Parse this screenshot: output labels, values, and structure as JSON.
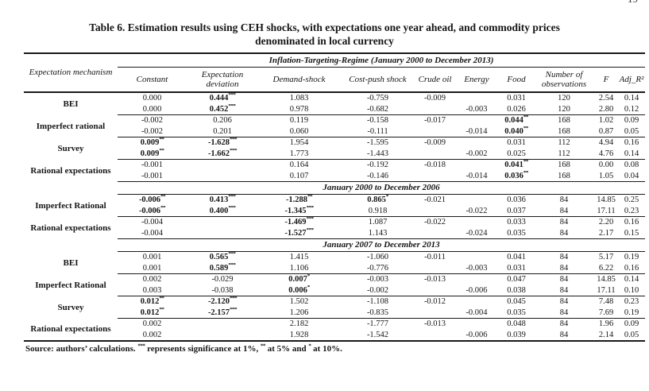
{
  "page": {
    "number": "19"
  },
  "title": {
    "line1": "Table 6. Estimation results using CEH shocks, with expectations one year ahead, and commodity prices",
    "line2": "denominated in local currency"
  },
  "table": {
    "row_header": "Expectation mechanism",
    "span_header": "Inflation-Targeting-Regime (January 2000 to December 2013)",
    "columns": [
      "Constant",
      "Expectation deviation",
      "Demand-shock",
      "Cost-push shock",
      "Crude oil",
      "Energy",
      "Food",
      "Number of observations",
      "F",
      "Adj_R²"
    ],
    "body": [
      {
        "type": "group",
        "label": "BEI",
        "rows": [
          [
            "0.000",
            "0.444^***",
            "1.083",
            "-0.759",
            "-0.009",
            "",
            "0.031",
            "120",
            "2.54",
            "0.14"
          ],
          [
            "0.000",
            "0.452^***",
            "0.978",
            "-0.682",
            "",
            "-0.003",
            "0.026",
            "120",
            "2.80",
            "0.12"
          ]
        ]
      },
      {
        "type": "group",
        "label": "Imperfect rational",
        "rows": [
          [
            "-0.002",
            "0.206",
            "0.119",
            "-0.158",
            "-0.017",
            "",
            "0.044^**",
            "168",
            "1.02",
            "0.09"
          ],
          [
            "-0.002",
            "0.201",
            "0.060",
            "-0.111",
            "",
            "-0.014",
            "0.040^**",
            "168",
            "0.87",
            "0.05"
          ]
        ]
      },
      {
        "type": "group",
        "label": "Survey",
        "rows": [
          [
            "0.009^**",
            "-1.628^***",
            "1.954",
            "-1.595",
            "-0.009",
            "",
            "0.031",
            "112",
            "4.94",
            "0.16"
          ],
          [
            "0.009^**",
            "-1.662^***",
            "1.773",
            "-1.443",
            "",
            "-0.002",
            "0.025",
            "112",
            "4.76",
            "0.14"
          ]
        ]
      },
      {
        "type": "group",
        "label": "Rational expectations",
        "rows": [
          [
            "-0.001",
            "",
            "0.164",
            "-0.192",
            "-0.018",
            "",
            "0.041^**",
            "168",
            "0.00",
            "0.08"
          ],
          [
            "-0.001",
            "",
            "0.107",
            "-0.146",
            "",
            "-0.014",
            "0.036^**",
            "168",
            "1.05",
            "0.04"
          ]
        ]
      },
      {
        "type": "section",
        "label": "January 2000 to December 2006"
      },
      {
        "type": "group",
        "label": "Imperfect Rational",
        "rows": [
          [
            "-0.006^**",
            "0.413^***",
            "-1.288^**",
            "0.865^*",
            "-0.021",
            "",
            "0.036",
            "84",
            "14.85",
            "0.25"
          ],
          [
            "-0.006^**",
            "0.400^***",
            "-1.345^***",
            "0.918",
            "",
            "-0.022",
            "0.037",
            "84",
            "17.11",
            "0.23"
          ]
        ]
      },
      {
        "type": "group",
        "label": "Rational expectations",
        "rows": [
          [
            "-0.004",
            "",
            "-1.469^***",
            "1.087",
            "-0.022",
            "",
            "0.033",
            "84",
            "2.20",
            "0.16"
          ],
          [
            "-0.004",
            "",
            "-1.527^***",
            "1.143",
            "",
            "-0.024",
            "0.035",
            "84",
            "2.17",
            "0.15"
          ]
        ]
      },
      {
        "type": "section",
        "label": "January 2007 to December 2013"
      },
      {
        "type": "group",
        "label": "BEI",
        "rows": [
          [
            "0.001",
            "0.565^***",
            "1.415",
            "-1.060",
            "-0.011",
            "",
            "0.041",
            "84",
            "5.17",
            "0.19"
          ],
          [
            "0.001",
            "0.589^***",
            "1.106",
            "-0.776",
            "",
            "-0.003",
            "0.031",
            "84",
            "6.22",
            "0.16"
          ]
        ]
      },
      {
        "type": "group",
        "label": "Imperfect Rational",
        "rows": [
          [
            "0.002",
            "-0.029",
            "0.007^*",
            "-0.003",
            "-0.013",
            "",
            "0.047",
            "84",
            "14.85",
            "0.14"
          ],
          [
            "0.003",
            "-0.038",
            "0.006^*",
            "-0.002",
            "",
            "-0.006",
            "0.038",
            "84",
            "17.11",
            "0.10"
          ]
        ]
      },
      {
        "type": "group",
        "label": "Survey",
        "rows": [
          [
            "0.012^**",
            "-2.120^***",
            "1.502",
            "-1.108",
            "-0.012",
            "",
            "0.045",
            "84",
            "7.48",
            "0.23"
          ],
          [
            "0.012^**",
            "-2.157^***",
            "1.206",
            "-0.835",
            "",
            "-0.004",
            "0.035",
            "84",
            "7.69",
            "0.19"
          ]
        ]
      },
      {
        "type": "group",
        "label": "Rational expectations",
        "rows": [
          [
            "0.002",
            "",
            "2.182",
            "-1.777",
            "-0.013",
            "",
            "0.048",
            "84",
            "1.96",
            "0.09"
          ],
          [
            "0.002",
            "",
            "1.928",
            "-1.542",
            "",
            "-0.006",
            "0.039",
            "84",
            "2.14",
            "0.05"
          ]
        ]
      }
    ]
  },
  "footer": {
    "part1": "Source: authors’ calculations. ",
    "sup1": "***",
    "part2": " represents significance at 1%, ",
    "sup2": "**",
    "part3": " at 5% and ",
    "sup3": "*",
    "part4": " at 10%."
  }
}
